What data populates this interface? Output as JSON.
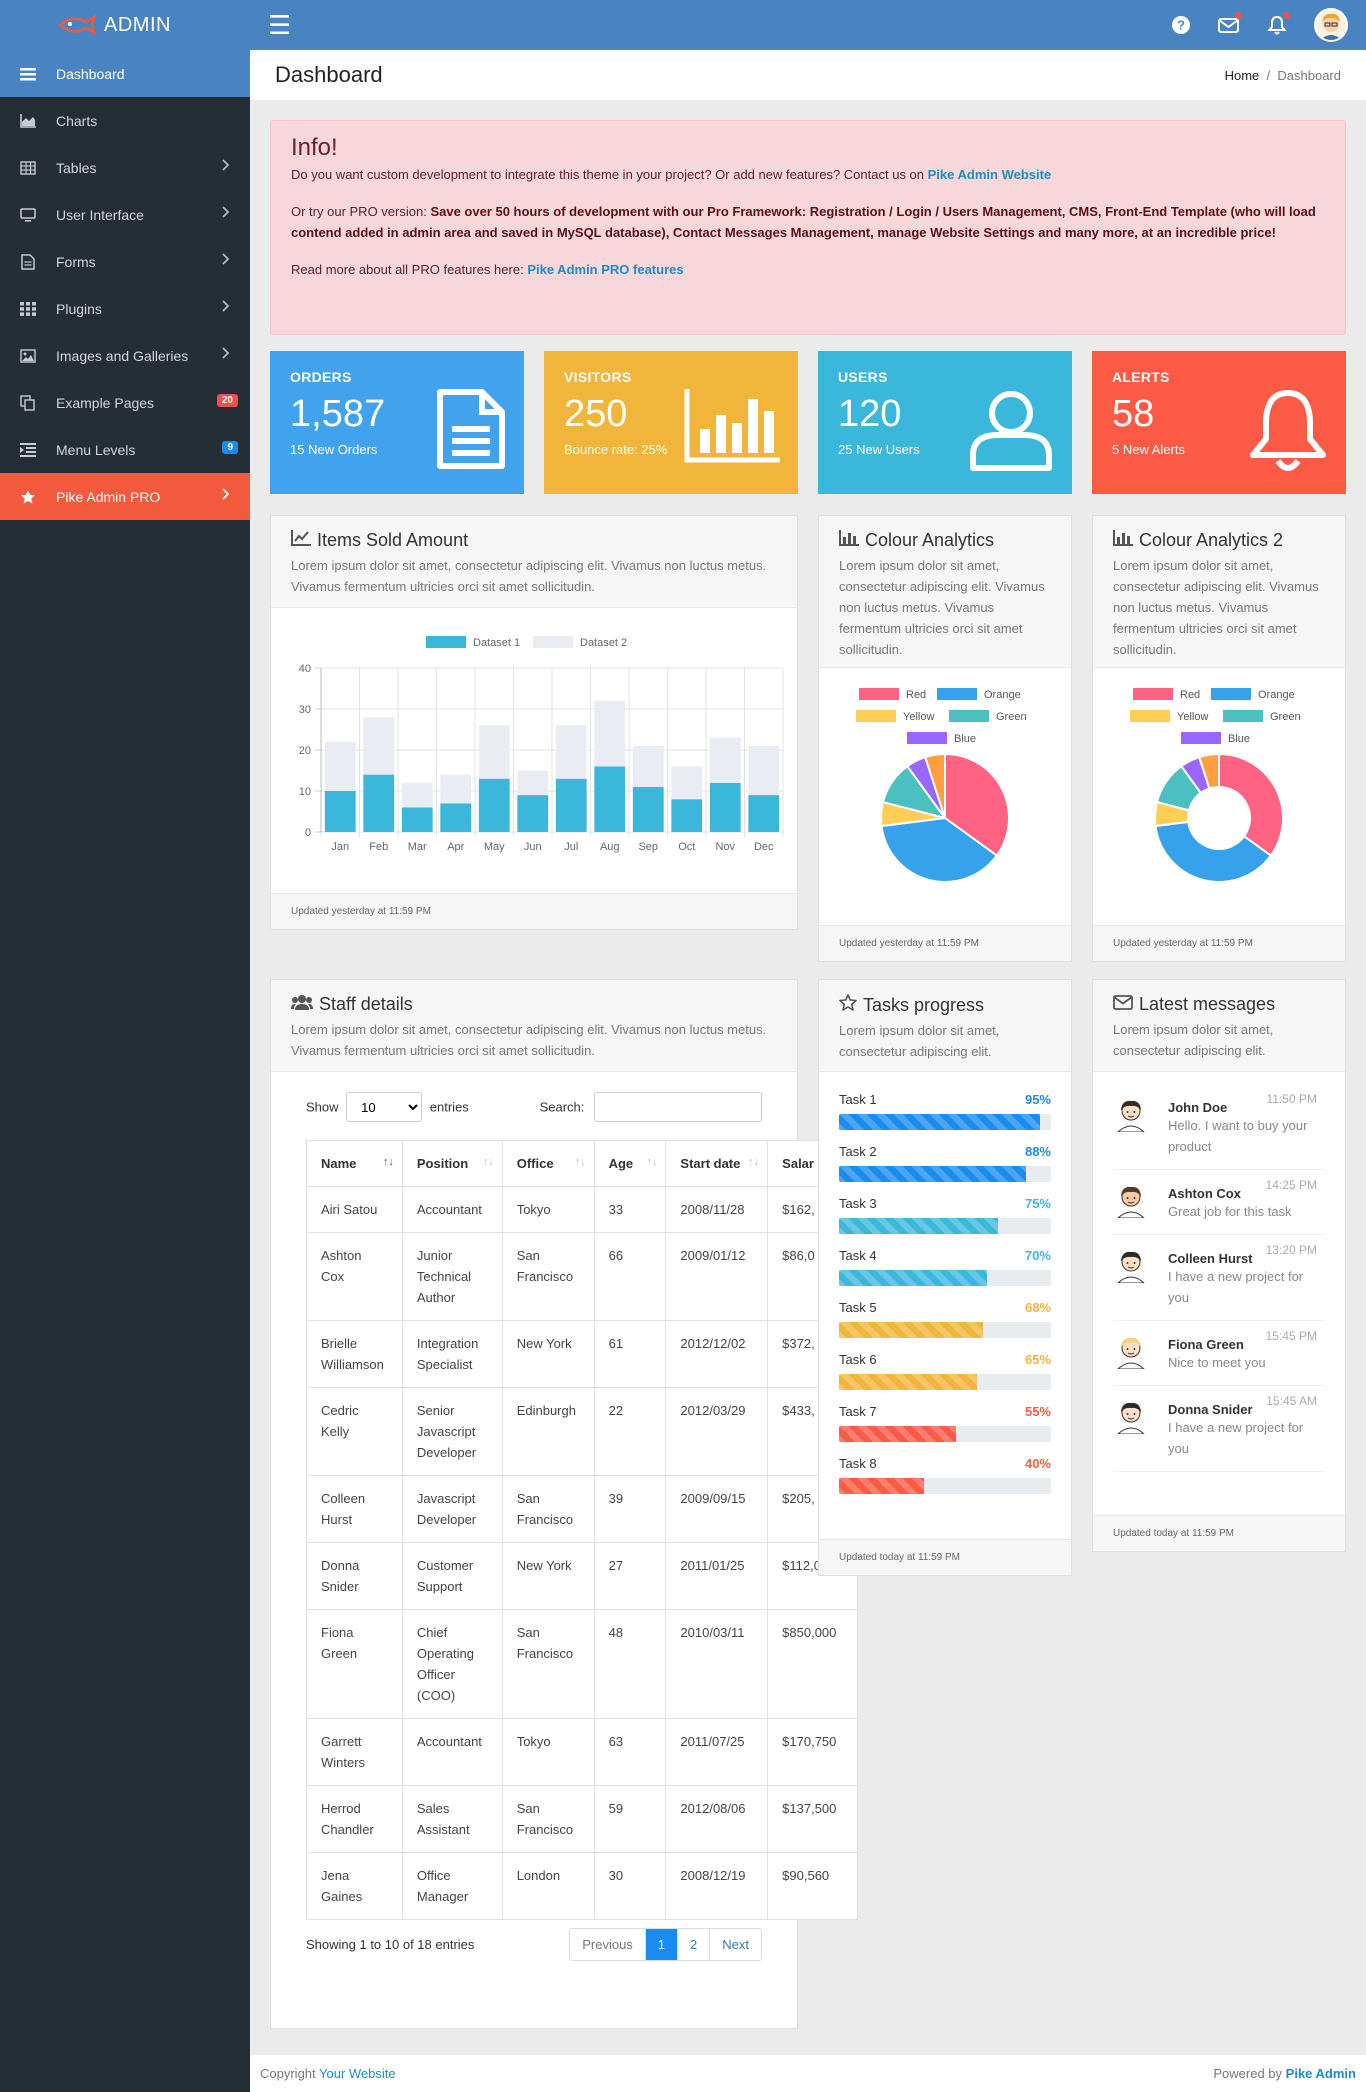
{
  "app": {
    "brand": "ADMIN",
    "avatar_icon": "user-avatar"
  },
  "sidebar": {
    "items": [
      {
        "label": "Dashboard",
        "icon": "bars-icon"
      },
      {
        "label": "Charts",
        "icon": "area-chart-icon"
      },
      {
        "label": "Tables",
        "icon": "table-icon"
      },
      {
        "label": "User Interface",
        "icon": "desktop-icon"
      },
      {
        "label": "Forms",
        "icon": "file-icon"
      },
      {
        "label": "Plugins",
        "icon": "grid-icon"
      },
      {
        "label": "Images and Galleries",
        "icon": "image-icon"
      },
      {
        "label": "Example Pages",
        "icon": "copy-icon",
        "badge": "20",
        "badge_color": "#f05050"
      },
      {
        "label": "Menu Levels",
        "icon": "indent-icon",
        "badge": "9",
        "badge_color": "#1a8cf0"
      },
      {
        "label": "Pike Admin PRO",
        "icon": "star-icon"
      }
    ]
  },
  "header": {
    "title": "Dashboard",
    "breadcrumb_home": "Home",
    "breadcrumb_sep": "/",
    "breadcrumb_current": "Dashboard"
  },
  "alert": {
    "title": "Info!",
    "line1": "Do you want custom development to integrate this theme in your project? Or add new features? Contact us on",
    "line1_link": "Pike Admin Website",
    "line2_prefix": "Or try our PRO version:",
    "line2_bold": "Save over 50 hours of development with our Pro Framework: Registration / Login / Users Management, CMS, Front-End Template (who will load contend added in admin area and saved in MySQL database), Contact Messages Management, manage Website Settings and many more, at an incredible price!",
    "line3": "Read more about all PRO features here:",
    "line3_link": "Pike Admin PRO features"
  },
  "stats": [
    {
      "label": "ORDERS",
      "value": "1,587",
      "sub": "15 New Orders",
      "color": "#41a3ed",
      "icon": "document-icon"
    },
    {
      "label": "VISITORS",
      "value": "250",
      "sub": "Bounce rate: 25%",
      "color": "#f2b53b",
      "icon": "bar-chart-icon"
    },
    {
      "label": "USERS",
      "value": "120",
      "sub": "25 New Users",
      "color": "#3cb7dc",
      "icon": "user-icon"
    },
    {
      "label": "ALERTS",
      "value": "58",
      "sub": "5 New Alerts",
      "color": "#fb5a45",
      "icon": "bell-icon"
    }
  ],
  "items_sold": {
    "title": "Items Sold Amount",
    "desc": "Lorem ipsum dolor sit amet, consectetur adipiscing elit. Vivamus non luctus metus. Vivamus fermentum ultricies orci sit amet sollicitudin.",
    "footer": "Updated yesterday at 11:59 PM"
  },
  "colour1": {
    "title": "Colour Analytics",
    "desc": "Lorem ipsum dolor sit amet, consectetur adipiscing elit. Vivamus non luctus metus. Vivamus fermentum ultricies orci sit amet sollicitudin.",
    "footer": "Updated yesterday at 11:59 PM"
  },
  "colour2": {
    "title": "Colour Analytics 2",
    "desc": "Lorem ipsum dolor sit amet, consectetur adipiscing elit. Vivamus non luctus metus. Vivamus fermentum ultricies orci sit amet sollicitudin.",
    "footer": "Updated yesterday at 11:59 PM"
  },
  "chart_data": [
    {
      "type": "bar",
      "stacked": true,
      "categories": [
        "Jan",
        "Feb",
        "Mar",
        "Apr",
        "May",
        "Jun",
        "Jul",
        "Aug",
        "Sep",
        "Oct",
        "Nov",
        "Dec"
      ],
      "series": [
        {
          "name": "Dataset 1",
          "color": "#3cb7dc",
          "values": [
            10,
            14,
            6,
            7,
            13,
            9,
            13,
            16,
            11,
            8,
            12,
            9
          ]
        },
        {
          "name": "Dataset 2",
          "color": "#e9ecf3",
          "values": [
            12,
            14,
            6,
            7,
            13,
            6,
            13,
            16,
            10,
            8,
            11,
            12
          ]
        }
      ],
      "ylim": [
        0,
        40
      ],
      "yticks": [
        0,
        10,
        20,
        30,
        40
      ],
      "grid": true,
      "legend": "top"
    },
    {
      "type": "pie",
      "labels": [
        "Red",
        "Orange",
        "Yellow",
        "Green",
        "Blue"
      ],
      "values": [
        35,
        38,
        6,
        11,
        5
      ],
      "colors": [
        "#ff6384",
        "#36a2eb",
        "#ffce56",
        "#4bc0c0",
        "#9966ff"
      ],
      "legend": "top"
    },
    {
      "type": "pie",
      "donut": true,
      "labels": [
        "Red",
        "Orange",
        "Yellow",
        "Green",
        "Blue"
      ],
      "values": [
        35,
        38,
        6,
        11,
        5
      ],
      "colors": [
        "#ff6384",
        "#36a2eb",
        "#ffce56",
        "#4bc0c0",
        "#9966ff"
      ],
      "legend": "top"
    }
  ],
  "extra_orange": "#ff9f40",
  "staff": {
    "title": "Staff details",
    "desc": "Lorem ipsum dolor sit amet, consectetur adipiscing elit. Vivamus non luctus metus. Vivamus fermentum ultricies orci sit amet sollicitudin.",
    "show": "Show",
    "entries": "entries",
    "length": "10",
    "search": "Search:",
    "columns": [
      "Name",
      "Position",
      "Office",
      "Age",
      "Start date",
      "Salar"
    ],
    "rows": [
      [
        "Airi Satou",
        "Accountant",
        "Tokyo",
        "33",
        "2008/11/28",
        "$162,"
      ],
      [
        "Ashton Cox",
        "Junior Technical Author",
        "San Francisco",
        "66",
        "2009/01/12",
        "$86,0"
      ],
      [
        "Brielle Williamson",
        "Integration Specialist",
        "New York",
        "61",
        "2012/12/02",
        "$372,"
      ],
      [
        "Cedric Kelly",
        "Senior Javascript Developer",
        "Edinburgh",
        "22",
        "2012/03/29",
        "$433,"
      ],
      [
        "Colleen Hurst",
        "Javascript Developer",
        "San Francisco",
        "39",
        "2009/09/15",
        "$205,"
      ],
      [
        "Donna Snider",
        "Customer Support",
        "New York",
        "27",
        "2011/01/25",
        "$112,000"
      ],
      [
        "Fiona Green",
        "Chief Operating Officer (COO)",
        "San Francisco",
        "48",
        "2010/03/11",
        "$850,000"
      ],
      [
        "Garrett Winters",
        "Accountant",
        "Tokyo",
        "63",
        "2011/07/25",
        "$170,750"
      ],
      [
        "Herrod Chandler",
        "Sales Assistant",
        "San Francisco",
        "59",
        "2012/08/06",
        "$137,500"
      ],
      [
        "Jena Gaines",
        "Office Manager",
        "London",
        "30",
        "2008/12/19",
        "$90,560"
      ]
    ],
    "info": "Showing 1 to 10 of 18 entries",
    "prev": "Previous",
    "p1": "1",
    "p2": "2",
    "next": "Next"
  },
  "tasks": {
    "title": "Tasks progress",
    "desc": "Lorem ipsum dolor sit amet, consectetur adipiscing elit.",
    "footer": "Updated today at 11:59 PM",
    "items": [
      {
        "label": "Task 1",
        "pct": "95%",
        "value": 95,
        "color": "#1a8cf0"
      },
      {
        "label": "Task 2",
        "pct": "88%",
        "value": 88,
        "color": "#1a8cf0"
      },
      {
        "label": "Task 3",
        "pct": "75%",
        "value": 75,
        "color": "#3cb7dc"
      },
      {
        "label": "Task 4",
        "pct": "70%",
        "value": 70,
        "color": "#3cb7dc"
      },
      {
        "label": "Task 5",
        "pct": "68%",
        "value": 68,
        "color": "#f2b53b"
      },
      {
        "label": "Task 6",
        "pct": "65%",
        "value": 65,
        "color": "#f2b53b"
      },
      {
        "label": "Task 7",
        "pct": "55%",
        "value": 55,
        "color": "#fb5a45"
      },
      {
        "label": "Task 8",
        "pct": "40%",
        "value": 40,
        "color": "#fb5a45"
      }
    ]
  },
  "messages": {
    "title": "Latest messages",
    "desc": "Lorem ipsum dolor sit amet, consectetur adipiscing elit.",
    "footer": "Updated today at 11:59 PM",
    "items": [
      {
        "name": "John Doe",
        "time": "11:50 PM",
        "text": "Hello. I want to buy your product",
        "hair": "#3a2a1e",
        "skin": "#fde0c5"
      },
      {
        "name": "Ashton Cox",
        "time": "14:25 PM",
        "text": "Great job for this task",
        "hair": "#5a3a22",
        "skin": "#f5cba7"
      },
      {
        "name": "Colleen Hurst",
        "time": "13:20 PM",
        "text": "I have a new project for you",
        "hair": "#2b2b2b",
        "skin": "#fde0c5"
      },
      {
        "name": "Fiona Green",
        "time": "15:45 PM",
        "text": "Nice to meet you",
        "hair": "#f0d48a",
        "skin": "#fde0c5"
      },
      {
        "name": "Donna Snider",
        "time": "15:45 AM",
        "text": "I have a new project for you",
        "hair": "#2b2b2b",
        "skin": "#fde0c5"
      }
    ]
  },
  "footer": {
    "left": "Copyright",
    "left_link": "Your Website",
    "right": "Powered by",
    "right_link": "Pike Admin"
  }
}
